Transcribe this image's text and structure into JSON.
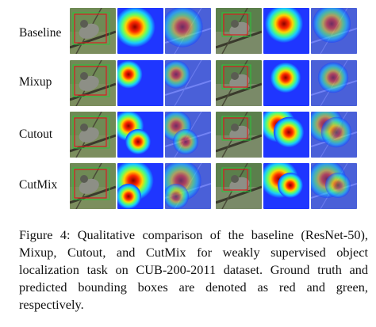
{
  "figure": {
    "rows": [
      "Baseline",
      "Mixup",
      "Cutout",
      "CutMix"
    ],
    "panels_per_row": 6,
    "bbox_colors": {
      "ground_truth": "#d42020",
      "predicted": "#29c43a"
    },
    "heatmap_colormap": "jet"
  },
  "caption": {
    "label": "Figure 4:",
    "text": "Qualitative comparison of the baseline (ResNet-50), Mixup, Cutout, and CutMix for weakly supervised object localization task on CUB-200-2011 dataset. Ground truth and predicted bounding boxes are denoted as red and green, respectively."
  }
}
